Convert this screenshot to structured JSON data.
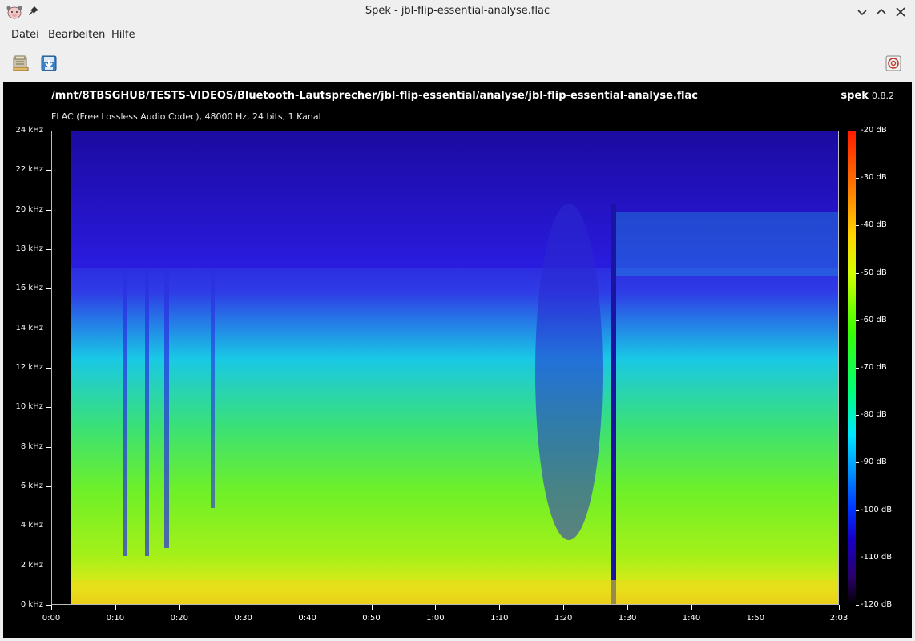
{
  "window": {
    "title": "Spek - jbl-flip-essential-analyse.flac",
    "app_icon": "spek-pig-icon",
    "pin_icon": "pin-icon",
    "controls": [
      "minimize-icon",
      "maximize-icon",
      "close-icon"
    ]
  },
  "menu": {
    "items": [
      {
        "label": "Datei"
      },
      {
        "label": "Bearbeiten"
      },
      {
        "label": "Hilfe"
      }
    ]
  },
  "toolbar": {
    "buttons": [
      {
        "icon": "folder-open-icon"
      },
      {
        "icon": "save-icon"
      },
      {
        "icon": "preferences-icon"
      }
    ]
  },
  "spectrogram": {
    "file_path": "/mnt/8TBSGHUB/TESTS-VIDEOS/Bluetooth-Lautsprecher/jbl-flip-essential/analyse/jbl-flip-essential-analyse.flac",
    "app_name": "spek",
    "app_version": "0.8.2",
    "file_info": "FLAC (Free Lossless Audio Codec), 48000 Hz, 24 bits, 1 Kanal",
    "frequency_axis": [
      "24 kHz",
      "22 kHz",
      "20 kHz",
      "18 kHz",
      "16 kHz",
      "14 kHz",
      "12 kHz",
      "10 kHz",
      "8 kHz",
      "6 kHz",
      "4 kHz",
      "2 kHz",
      "0 kHz"
    ],
    "time_axis": [
      "0:00",
      "0:10",
      "0:20",
      "0:30",
      "0:40",
      "0:50",
      "1:00",
      "1:10",
      "1:20",
      "1:30",
      "1:40",
      "1:50",
      "2:03"
    ],
    "db_scale": [
      "-20 dB",
      "-30 dB",
      "-40 dB",
      "-50 dB",
      "-60 dB",
      "-70 dB",
      "-80 dB",
      "-90 dB",
      "-100 dB",
      "-110 dB",
      "-120 dB"
    ],
    "colors": {
      "background": "#000000",
      "high_freq": "#2a1adf",
      "mid": "#19d6e6",
      "low": "#7cf018",
      "peak": "#f0d820"
    }
  }
}
